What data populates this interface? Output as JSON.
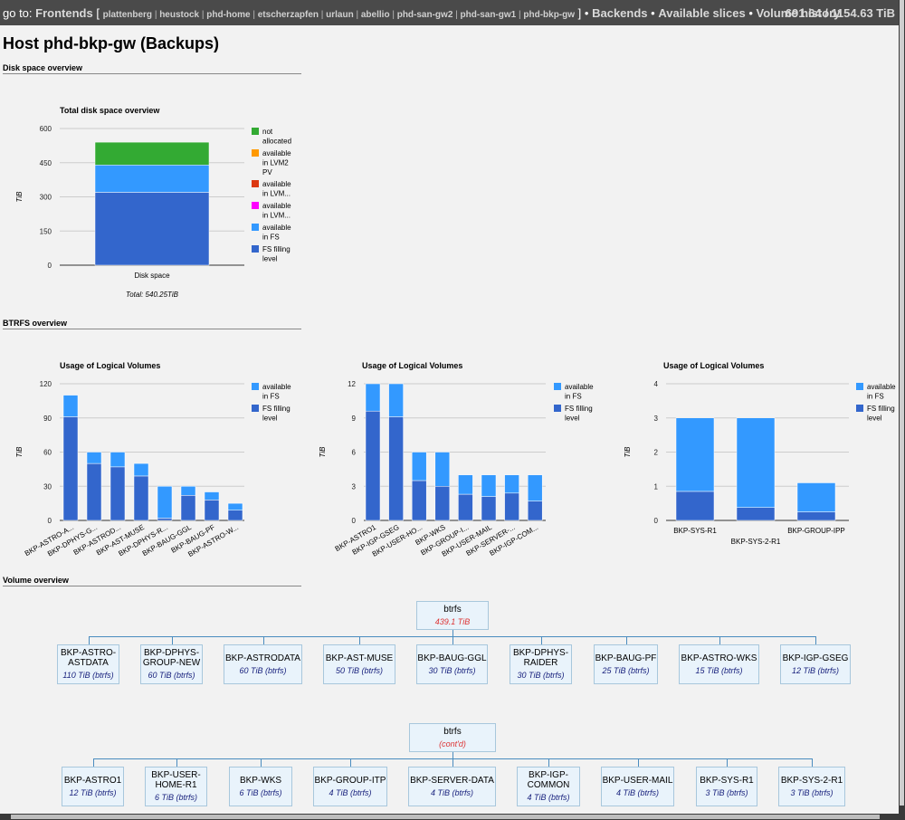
{
  "topbar": {
    "goto_label": "go to:",
    "frontends_label": "Frontends",
    "bracket_open": "[",
    "bracket_close": "]",
    "hosts": [
      "plattenberg",
      "heustock",
      "phd-home",
      "etscherzapfen",
      "urlaun",
      "abellio",
      "phd-san-gw2",
      "phd-san-gw1",
      "phd-bkp-gw"
    ],
    "links": [
      "Backends",
      "Available slices",
      "Volume history"
    ],
    "stats": "691.64 / 1154.63 TiB"
  },
  "page_title": "Host phd-bkp-gw (Backups)",
  "sections": {
    "disk": "Disk space overview",
    "btrfs": "BTRFS overview",
    "volume": "Volume overview"
  },
  "colors": {
    "fs_fill": "#3366cc",
    "avail_fs": "#3399ff",
    "not_alloc": "#33aa33",
    "avail_lvm2": "#ff9900",
    "avail_lvm_red": "#dc3912",
    "avail_lvm_mag": "#ff00ff"
  },
  "chart_data": [
    {
      "id": "disk",
      "type": "bar",
      "stacked": true,
      "title": "Total disk space overview",
      "ylabel": "TiB",
      "categories": [
        "Disk space"
      ],
      "yticks": [
        "0",
        "150",
        "300",
        "450",
        "600"
      ],
      "ylim": [
        0,
        600
      ],
      "series": [
        {
          "name": "FS filling level",
          "color": "#3366cc",
          "values": [
            320
          ]
        },
        {
          "name": "available in FS",
          "color": "#3399ff",
          "values": [
            120
          ]
        },
        {
          "name": "available in LVM...",
          "color": "#ff00ff",
          "values": [
            0
          ]
        },
        {
          "name": "available in LVM...",
          "color": "#dc3912",
          "values": [
            0
          ]
        },
        {
          "name": "available in LVM2 PV",
          "color": "#ff9900",
          "values": [
            0
          ]
        },
        {
          "name": "not allocated",
          "color": "#33aa33",
          "values": [
            100
          ]
        }
      ],
      "legend": [
        {
          "color": "#33aa33",
          "lines": [
            "not",
            "allocated"
          ]
        },
        {
          "color": "#ff9900",
          "lines": [
            "available",
            "in LVM2",
            "PV"
          ]
        },
        {
          "color": "#dc3912",
          "lines": [
            "available",
            "in LVM..."
          ]
        },
        {
          "color": "#ff00ff",
          "lines": [
            "available",
            "in LVM..."
          ]
        },
        {
          "color": "#3399ff",
          "lines": [
            "available",
            "in FS"
          ]
        },
        {
          "color": "#3366cc",
          "lines": [
            "FS filling",
            "level"
          ]
        }
      ],
      "footer": "Total: 540.25TiB"
    },
    {
      "id": "lv1",
      "type": "bar",
      "stacked": true,
      "title": "Usage of Logical Volumes",
      "ylabel": "TiB",
      "categories": [
        "BKP-ASTRO-A...",
        "BKP-DPHYS-G...",
        "BKP-ASTROD...",
        "BKP-AST-MUSE",
        "BKP-DPHYS-R...",
        "BKP-BAUG-GGL",
        "BKP-BAUG-PF",
        "BKP-ASTRO-W..."
      ],
      "yticks": [
        "0",
        "30",
        "60",
        "90",
        "120"
      ],
      "ylim": [
        0,
        120
      ],
      "series": [
        {
          "name": "FS filling level",
          "color": "#3366cc",
          "values": [
            91,
            50,
            47,
            39,
            2,
            22,
            18,
            9
          ]
        },
        {
          "name": "available in FS",
          "color": "#3399ff",
          "values": [
            19,
            10,
            13,
            11,
            28,
            8,
            7,
            6
          ]
        }
      ],
      "legend": [
        {
          "color": "#3399ff",
          "lines": [
            "available",
            "in FS"
          ]
        },
        {
          "color": "#3366cc",
          "lines": [
            "FS filling",
            "level"
          ]
        }
      ]
    },
    {
      "id": "lv2",
      "type": "bar",
      "stacked": true,
      "title": "Usage of Logical Volumes",
      "ylabel": "TiB",
      "categories": [
        "BKP-ASTRO1",
        "BKP-IGP-GSEG",
        "BKP-USER-HO...",
        "BKP-WKS",
        "BKP-GROUP-I...",
        "BKP-USER-MAIL",
        "BKP-SERVER-...",
        "BKP-IGP-COM..."
      ],
      "yticks": [
        "0",
        "3",
        "6",
        "9",
        "12"
      ],
      "ylim": [
        0,
        12
      ],
      "series": [
        {
          "name": "FS filling level",
          "color": "#3366cc",
          "values": [
            9.6,
            9.1,
            3.5,
            3.0,
            2.3,
            2.1,
            2.4,
            1.7
          ]
        },
        {
          "name": "available in FS",
          "color": "#3399ff",
          "values": [
            2.4,
            2.9,
            2.5,
            3.0,
            1.7,
            1.9,
            1.6,
            2.3
          ]
        }
      ],
      "legend": [
        {
          "color": "#3399ff",
          "lines": [
            "available",
            "in FS"
          ]
        },
        {
          "color": "#3366cc",
          "lines": [
            "FS filling",
            "level"
          ]
        }
      ]
    },
    {
      "id": "lv3",
      "type": "bar",
      "stacked": true,
      "title": "Usage of Logical Volumes",
      "ylabel": "TiB",
      "categories": [
        "BKP-SYS-R1",
        "BKP-SYS-2-R1",
        "BKP-GROUP-IPP"
      ],
      "yticks": [
        "0",
        "1",
        "2",
        "3",
        "4"
      ],
      "ylim": [
        0,
        4
      ],
      "series": [
        {
          "name": "FS filling level",
          "color": "#3366cc",
          "values": [
            0.85,
            0.38,
            0.25
          ]
        },
        {
          "name": "available in FS",
          "color": "#3399ff",
          "values": [
            2.15,
            2.62,
            0.85
          ]
        }
      ],
      "legend": [
        {
          "color": "#3399ff",
          "lines": [
            "available",
            "in FS"
          ]
        },
        {
          "color": "#3366cc",
          "lines": [
            "FS filling",
            "level"
          ]
        }
      ]
    }
  ],
  "volumes": {
    "group1": {
      "root": {
        "name": "btrfs",
        "size": "439.1 TiB"
      },
      "children": [
        {
          "lines": [
            "BKP-ASTRO-",
            "ASTDATA"
          ],
          "size": "110 TiB (btrfs)"
        },
        {
          "lines": [
            "BKP-DPHYS-",
            "GROUP-NEW"
          ],
          "size": "60 TiB (btrfs)"
        },
        {
          "lines": [
            "BKP-ASTRODATA"
          ],
          "size": "60 TiB (btrfs)"
        },
        {
          "lines": [
            "BKP-AST-MUSE"
          ],
          "size": "50 TiB (btrfs)"
        },
        {
          "lines": [
            "BKP-BAUG-GGL"
          ],
          "size": "30 TiB (btrfs)"
        },
        {
          "lines": [
            "BKP-DPHYS-",
            "RAIDER"
          ],
          "size": "30 TiB (btrfs)"
        },
        {
          "lines": [
            "BKP-BAUG-PF"
          ],
          "size": "25 TiB (btrfs)"
        },
        {
          "lines": [
            "BKP-ASTRO-WKS"
          ],
          "size": "15 TiB (btrfs)"
        },
        {
          "lines": [
            "BKP-IGP-GSEG"
          ],
          "size": "12 TiB (btrfs)"
        }
      ]
    },
    "group2": {
      "root": {
        "name": "btrfs",
        "size": "(cont'd)"
      },
      "children": [
        {
          "lines": [
            "BKP-ASTRO1"
          ],
          "size": "12 TiB (btrfs)"
        },
        {
          "lines": [
            "BKP-USER-",
            "HOME-R1"
          ],
          "size": "6 TiB (btrfs)"
        },
        {
          "lines": [
            "BKP-WKS"
          ],
          "size": "6 TiB (btrfs)"
        },
        {
          "lines": [
            "BKP-GROUP-ITP"
          ],
          "size": "4 TiB (btrfs)"
        },
        {
          "lines": [
            "BKP-SERVER-DATA"
          ],
          "size": "4 TiB (btrfs)"
        },
        {
          "lines": [
            "BKP-IGP-",
            "COMMON"
          ],
          "size": "4 TiB (btrfs)"
        },
        {
          "lines": [
            "BKP-USER-MAIL"
          ],
          "size": "4 TiB (btrfs)"
        },
        {
          "lines": [
            "BKP-SYS-R1"
          ],
          "size": "3 TiB (btrfs)"
        },
        {
          "lines": [
            "BKP-SYS-2-R1"
          ],
          "size": "3 TiB (btrfs)"
        }
      ]
    }
  }
}
